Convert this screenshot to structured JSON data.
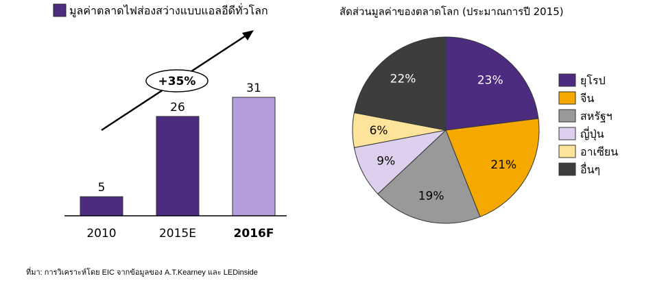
{
  "chart_data": [
    {
      "type": "bar",
      "legend_label": "มูลค่าตลาดไฟส่องสว่างแบบแอลอีดีทั่วโลก",
      "categories": [
        "2010",
        "2015E",
        "2016F"
      ],
      "values": [
        5,
        26,
        31
      ],
      "bold_category": "2016F",
      "colors": [
        "#4b2c7f",
        "#4b2c7f",
        "#b39ddb"
      ],
      "growth_annotation": "+35%",
      "ylim": [
        0,
        31
      ]
    },
    {
      "type": "pie",
      "title": "สัดส่วนมูลค่าของตลาดโลก (ประมาณการปี 2015)",
      "slices": [
        {
          "label": "ยุโรป",
          "value": 23,
          "display": "23%",
          "color": "#4b2c7f",
          "text_color": "#ffffff"
        },
        {
          "label": "จีน",
          "value": 21,
          "display": "21%",
          "color": "#f5a800",
          "text_color": "#000000"
        },
        {
          "label": "สหรัฐฯ",
          "value": 19,
          "display": "19%",
          "color": "#999999",
          "text_color": "#000000"
        },
        {
          "label": "ญี่ปุ่น",
          "value": 9,
          "display": "9%",
          "color": "#ddd0ee",
          "text_color": "#000000"
        },
        {
          "label": "อาเซียน",
          "value": 6,
          "display": "6%",
          "color": "#fde49a",
          "text_color": "#000000"
        },
        {
          "label": "อื่นๆ",
          "value": 22,
          "display": "22%",
          "color": "#3d3d3d",
          "text_color": "#ffffff"
        }
      ],
      "legend_position": "right"
    }
  ],
  "source_note": "ที่มา: การวิเคราะห์โดย EIC จากข้อมูลของ A.T.Kearney และ LEDinside"
}
